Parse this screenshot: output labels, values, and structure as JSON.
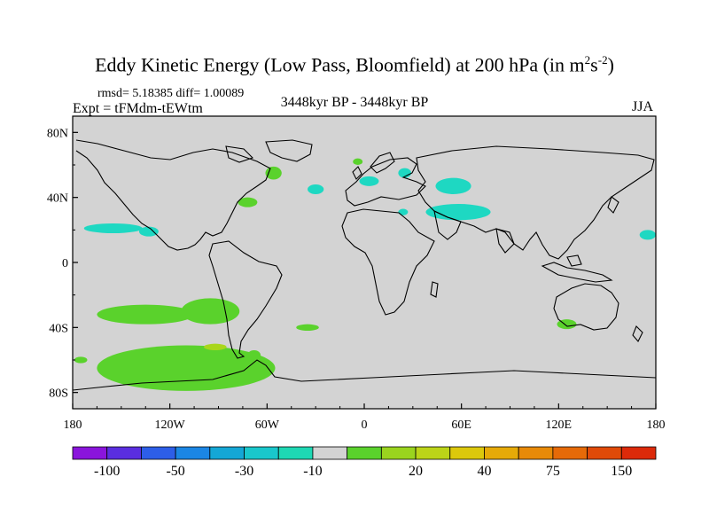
{
  "plot": {
    "title_main": "Eddy Kinetic Energy (Low Pass, Bloomfield) at 200 hPa (in m",
    "title_sup1": "2",
    "title_mid": "s",
    "title_sup2": "-2",
    "title_end": ")",
    "stats": "rmsd= 5.18385 diff= 1.00089",
    "expt": "Expt = tFMdm-tEWtm",
    "center_label": "3448kyr BP - 3448kyr BP",
    "season": "JJA"
  },
  "colors": {
    "land_ocean_fill": "#d3d3d3",
    "coastline": "#000000",
    "positive_low": "#5ad22c",
    "positive_mid": "#a9d61b",
    "negative_low": "#1ed8c2",
    "palette": [
      "#8a14dc",
      "#5a2ee0",
      "#2d5ee8",
      "#1b86e4",
      "#14a7d6",
      "#19c7cc",
      "#1ed8b4",
      "#d3d3d3",
      "#5ad22c",
      "#9ad41e",
      "#bcd418",
      "#dcc80c",
      "#e6aa08",
      "#e88a08",
      "#e66a08",
      "#e04a08",
      "#dc2a0a"
    ]
  },
  "chart_data": {
    "type": "heatmap",
    "title": "Eddy Kinetic Energy (Low Pass, Bloomfield) at 200 hPa (in m^2 s^-2)",
    "projection": "cylindrical equidistant",
    "lon_range": [
      -180,
      180
    ],
    "lat_range": [
      -90,
      90
    ],
    "x_ticks": [
      {
        "lon": -180,
        "label": "180"
      },
      {
        "lon": -120,
        "label": "120W"
      },
      {
        "lon": -60,
        "label": "60W"
      },
      {
        "lon": 0,
        "label": "0"
      },
      {
        "lon": 60,
        "label": "60E"
      },
      {
        "lon": 120,
        "label": "120E"
      },
      {
        "lon": 180,
        "label": "180"
      }
    ],
    "y_ticks": [
      {
        "lat": 80,
        "label": "80N"
      },
      {
        "lat": 40,
        "label": "40N"
      },
      {
        "lat": 0,
        "label": "0"
      },
      {
        "lat": -40,
        "label": "40S"
      },
      {
        "lat": -80,
        "label": "80S"
      }
    ],
    "colorbar": {
      "levels_labeled": [
        "-100",
        "-50",
        "-30",
        "-10",
        "20",
        "40",
        "75",
        "150"
      ],
      "n_bins": 17
    },
    "anomalies": [
      {
        "name": "north-pacific-east-neg",
        "lon": -155,
        "lat": 21,
        "rlon": 18,
        "rlat": 3,
        "value": -12
      },
      {
        "name": "east-pacific-neg",
        "lon": -133,
        "lat": 19,
        "rlon": 6,
        "rlat": 3,
        "value": -12
      },
      {
        "name": "north-atlantic-pos",
        "lon": -72,
        "lat": 37,
        "rlon": 6,
        "rlat": 3,
        "value": 22
      },
      {
        "name": "labrador-pos",
        "lon": -56,
        "lat": 55,
        "rlon": 5,
        "rlat": 4,
        "value": 22
      },
      {
        "name": "mid-atlantic-neg",
        "lon": -30,
        "lat": 45,
        "rlon": 5,
        "rlat": 3,
        "value": -12
      },
      {
        "name": "iceland-pos",
        "lon": -4,
        "lat": 62,
        "rlon": 3,
        "rlat": 2,
        "value": 22
      },
      {
        "name": "baltic-neg",
        "lon": 25,
        "lat": 55,
        "rlon": 4,
        "rlat": 3,
        "value": -12
      },
      {
        "name": "northsea-neg",
        "lon": 3,
        "lat": 50,
        "rlon": 6,
        "rlat": 3,
        "value": -12
      },
      {
        "name": "russia-neg",
        "lon": 55,
        "lat": 47,
        "rlon": 11,
        "rlat": 5,
        "value": -12
      },
      {
        "name": "middle-east-neg",
        "lon": 58,
        "lat": 31,
        "rlon": 20,
        "rlat": 5,
        "value": -14
      },
      {
        "name": "east-med-neg",
        "lon": 24,
        "lat": 31,
        "rlon": 3,
        "rlat": 2,
        "value": -12
      },
      {
        "name": "south-pacific-subtrop-pos",
        "lon": -135,
        "lat": -32,
        "rlon": 30,
        "rlat": 6,
        "value": 25
      },
      {
        "name": "south-pacific-midlat-pos",
        "lon": -110,
        "lat": -65,
        "rlon": 55,
        "rlat": 14,
        "value": 28
      },
      {
        "name": "south-pacific-high-pos",
        "lon": -95,
        "lat": -30,
        "rlon": 18,
        "rlat": 8,
        "value": 28
      },
      {
        "name": "south-atlantic-pos",
        "lon": -35,
        "lat": -40,
        "rlon": 7,
        "rlat": 2,
        "value": 21
      },
      {
        "name": "drake-pos",
        "lon": -68,
        "lat": -57,
        "rlon": 4,
        "rlat": 3,
        "value": 21
      },
      {
        "name": "australia-pos",
        "lon": 125,
        "lat": -38,
        "rlon": 6,
        "rlat": 3,
        "value": 21
      },
      {
        "name": "west-pacific-neg",
        "lon": 175,
        "lat": 17,
        "rlon": 5,
        "rlat": 3,
        "value": -12
      },
      {
        "name": "dateline-south-pos",
        "lon": -175,
        "lat": -60,
        "rlon": 4,
        "rlat": 2,
        "value": 21
      },
      {
        "name": "subtrop-pac-mid-pos",
        "lon": -92,
        "lat": -52,
        "rlon": 7,
        "rlat": 2,
        "value": 40
      }
    ]
  }
}
